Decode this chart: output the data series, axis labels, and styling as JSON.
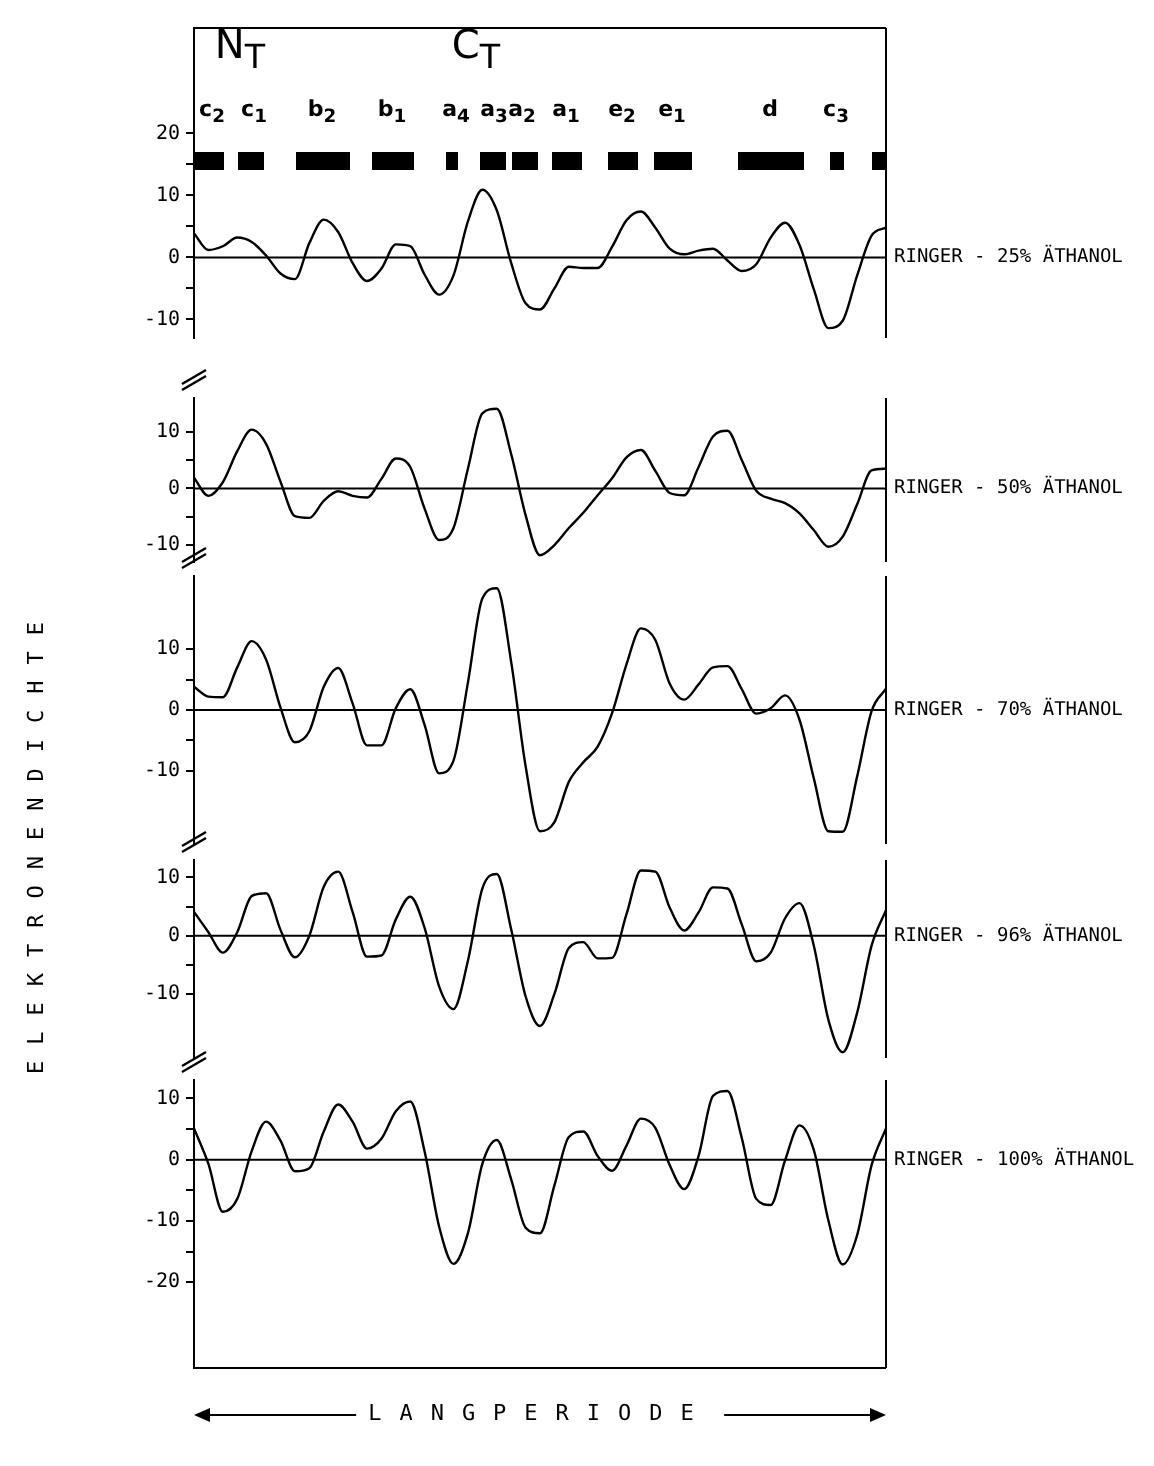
{
  "chart_data": [
    {
      "type": "line",
      "annotations": [
        "N$_{T}$",
        "C$_{T}$",
        "c$_{2}$",
        "c$_{1}$",
        "b$_{2}$",
        "b$_{1}$",
        "a$_{4}$",
        "a$_{3}$",
        "a$_{2}$",
        "a$_{1}$",
        "e$_{2}$",
        "e$_{1}$",
        "d",
        "c$_{3}$"
      ],
      "categories": [
        null,
        null,
        null,
        null,
        null,
        null,
        null,
        null,
        null,
        null,
        null,
        null,
        null,
        null,
        null,
        null,
        null,
        null,
        null,
        null,
        null,
        null,
        null,
        null,
        null,
        null,
        null,
        null,
        null,
        null,
        null,
        null,
        null,
        null,
        null,
        null,
        null,
        null,
        null,
        null,
        null,
        null,
        null,
        null,
        null,
        null,
        null,
        null,
        null
      ],
      "series": [
        {
          "name": "RINGER - 25% ÄTHANOL",
          "color": "#000000",
          "values": [
            3.9,
            1.2,
            1.8,
            3.2,
            2.5,
            0.3,
            -2.6,
            -3.5,
            2.3,
            6.1,
            4.1,
            -0.9,
            -3.8,
            -1.8,
            2.1,
            1.8,
            -2.8,
            -6.0,
            -2.9,
            5.8,
            10.9,
            7.6,
            -0.9,
            -7.4,
            -8.4,
            -5.0,
            -1.5,
            -1.7,
            -1.7,
            1.7,
            6.0,
            7.4,
            4.8,
            1.4,
            0.5,
            1.1,
            1.4,
            -0.5,
            -2.2,
            -1.1,
            3.2,
            5.6,
            2.0,
            -5.2,
            -11.4,
            -10.2,
            -2.9,
            3.5,
            4.8
          ]
        }
      ],
      "ylim": [
        -13,
        37
      ],
      "yticks": [
        -10,
        {
          "value": -5,
          "label": null
        },
        0,
        {
          "value": 5,
          "label": null
        },
        10,
        {
          "value": 15,
          "label": null
        },
        20
      ],
      "ref_lines": [
        {
          "axis": "y",
          "value": 0
        }
      ],
      "tick_labels": "y",
      "grid": false,
      "legend": false,
      "marker": "none",
      "line_style": "solid"
    },
    {
      "type": "line",
      "categories": [
        null,
        null,
        null,
        null,
        null,
        null,
        null,
        null,
        null,
        null,
        null,
        null,
        null,
        null,
        null,
        null,
        null,
        null,
        null,
        null,
        null,
        null,
        null,
        null,
        null,
        null,
        null,
        null,
        null,
        null,
        null,
        null,
        null,
        null,
        null,
        null,
        null,
        null,
        null,
        null,
        null,
        null,
        null,
        null,
        null,
        null,
        null,
        null,
        null
      ],
      "series": [
        {
          "name": "RINGER - 50% ÄTHANOL",
          "color": "#000000",
          "values": [
            1.9,
            -1.3,
            1.1,
            6.6,
            10.4,
            7.9,
            1.2,
            -4.9,
            -5.2,
            -2.2,
            -0.5,
            -1.3,
            -1.6,
            1.7,
            5.3,
            3.8,
            -3.6,
            -9.1,
            -7.0,
            3.5,
            13.3,
            14.1,
            6.1,
            -4.7,
            -11.8,
            -10.0,
            -7.0,
            -4.3,
            -1.2,
            1.8,
            5.5,
            6.8,
            3.1,
            -0.8,
            -1.2,
            3.8,
            9.2,
            10.2,
            5.0,
            -0.4,
            -1.8,
            -2.6,
            -4.4,
            -7.4,
            -10.3,
            -8.5,
            -2.8,
            3.2,
            3.5
          ]
        }
      ],
      "ylim": [
        -13,
        16
      ],
      "yticks": [
        -10,
        {
          "value": -5,
          "label": null
        },
        0,
        {
          "value": 5,
          "label": null
        },
        10
      ],
      "ref_lines": [
        {
          "axis": "y",
          "value": 0
        }
      ],
      "tick_labels": "y",
      "grid": false,
      "legend": false,
      "marker": "none",
      "line_style": "solid"
    },
    {
      "type": "line",
      "ylabel": "ELEKTRONENDICHTE",
      "categories": [
        null,
        null,
        null,
        null,
        null,
        null,
        null,
        null,
        null,
        null,
        null,
        null,
        null,
        null,
        null,
        null,
        null,
        null,
        null,
        null,
        null,
        null,
        null,
        null,
        null,
        null,
        null,
        null,
        null,
        null,
        null,
        null,
        null,
        null,
        null,
        null,
        null,
        null,
        null,
        null,
        null,
        null,
        null,
        null,
        null,
        null,
        null,
        null,
        null
      ],
      "series": [
        {
          "name": "RINGER - 70% ÄTHANOL",
          "color": "#000000",
          "values": [
            3.8,
            2.2,
            2.1,
            7.0,
            11.3,
            8.3,
            0.4,
            -5.3,
            -3.5,
            3.8,
            6.9,
            1.1,
            -5.8,
            -5.8,
            0.3,
            3.4,
            -2.5,
            -10.4,
            -8.3,
            4.5,
            18.3,
            20.0,
            7.9,
            -9.2,
            -19.9,
            -18.4,
            -11.8,
            -8.6,
            -6.0,
            -0.5,
            7.5,
            13.4,
            11.5,
            4.3,
            1.7,
            4.2,
            7.0,
            7.2,
            3.4,
            -0.6,
            0.3,
            2.4,
            -1.6,
            -11.3,
            -19.9,
            -20.0,
            -10.9,
            -0.2,
            3.5
          ]
        }
      ],
      "ylim": [
        -22,
        22
      ],
      "yticks": [
        -10,
        {
          "value": -5,
          "label": null
        },
        0,
        {
          "value": 5,
          "label": null
        },
        10
      ],
      "ref_lines": [
        {
          "axis": "y",
          "value": 0
        }
      ],
      "tick_labels": "y",
      "grid": false,
      "legend": false,
      "marker": "none",
      "line_style": "solid"
    },
    {
      "type": "line",
      "categories": [
        null,
        null,
        null,
        null,
        null,
        null,
        null,
        null,
        null,
        null,
        null,
        null,
        null,
        null,
        null,
        null,
        null,
        null,
        null,
        null,
        null,
        null,
        null,
        null,
        null,
        null,
        null,
        null,
        null,
        null,
        null,
        null,
        null,
        null,
        null,
        null,
        null,
        null,
        null,
        null,
        null,
        null,
        null,
        null,
        null,
        null,
        null,
        null,
        null
      ],
      "series": [
        {
          "name": "RINGER - 96% ÄTHANOL",
          "color": "#000000",
          "values": [
            4.1,
            0.6,
            -2.9,
            0.6,
            6.8,
            7.3,
            1.0,
            -3.7,
            0.0,
            8.4,
            11.0,
            4.1,
            -3.6,
            -3.4,
            2.8,
            6.7,
            1.3,
            -8.7,
            -12.6,
            -4.3,
            8.1,
            10.6,
            1.1,
            -10.4,
            -15.5,
            -10.0,
            -2.1,
            -1.1,
            -3.9,
            -3.8,
            3.7,
            11.2,
            11.0,
            4.8,
            0.9,
            4.0,
            8.3,
            8.1,
            1.9,
            -4.4,
            -2.9,
            3.0,
            5.6,
            -1.8,
            -14.4,
            -20.0,
            -13.2,
            -1.7,
            4.4
          ]
        }
      ],
      "ylim": [
        -21,
        13
      ],
      "yticks": [
        -10,
        {
          "value": -5,
          "label": null
        },
        0,
        {
          "value": 5,
          "label": null
        },
        10
      ],
      "ref_lines": [
        {
          "axis": "y",
          "value": 0
        }
      ],
      "tick_labels": "y",
      "grid": false,
      "legend": false,
      "marker": "none",
      "line_style": "solid"
    },
    {
      "type": "line",
      "xlabel": "LANGPERIODE",
      "categories": [
        null,
        null,
        null,
        null,
        null,
        null,
        null,
        null,
        null,
        null,
        null,
        null,
        null,
        null,
        null,
        null,
        null,
        null,
        null,
        null,
        null,
        null,
        null,
        null,
        null,
        null,
        null,
        null,
        null,
        null,
        null,
        null,
        null,
        null,
        null,
        null,
        null,
        null,
        null,
        null,
        null,
        null,
        null,
        null,
        null,
        null,
        null,
        null,
        null
      ],
      "series": [
        {
          "name": "RINGER - 100% ÄTHANOL",
          "color": "#000000",
          "values": [
            5.1,
            -0.7,
            -8.5,
            -6.4,
            1.4,
            6.2,
            3.1,
            -1.9,
            -1.4,
            4.6,
            9.0,
            6.2,
            1.8,
            3.4,
            7.9,
            9.5,
            1.3,
            -10.9,
            -17.0,
            -12.0,
            -0.7,
            3.2,
            -3.2,
            -11.1,
            -12.0,
            -4.2,
            3.7,
            4.6,
            0.6,
            -1.8,
            2.3,
            6.7,
            5.2,
            -0.9,
            -4.8,
            0.6,
            10.4,
            11.2,
            3.5,
            -6.4,
            -7.4,
            -0.1,
            5.6,
            1.5,
            -9.9,
            -17.1,
            -12.3,
            -0.9,
            5.1
          ]
        }
      ],
      "ylim": [
        -34,
        13
      ],
      "yticks": [
        -20,
        {
          "value": -15,
          "label": null
        },
        -10,
        {
          "value": -5,
          "label": null
        },
        0,
        {
          "value": 5,
          "label": null
        },
        10
      ],
      "ref_lines": [
        {
          "axis": "y",
          "value": 0
        }
      ],
      "tick_labels": "y",
      "grid": false,
      "legend": false,
      "marker": "none",
      "line_style": "solid"
    }
  ]
}
